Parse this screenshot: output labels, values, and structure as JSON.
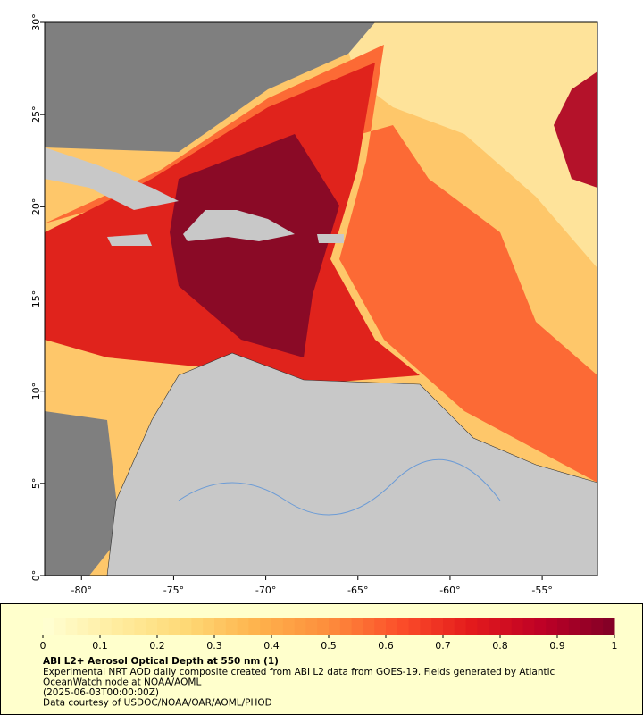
{
  "map": {
    "lon_range": [
      -82,
      -52
    ],
    "lat_range": [
      0,
      30
    ],
    "lat_ticks": [
      {
        "value": 0,
        "label": "0°"
      },
      {
        "value": 5,
        "label": "5°"
      },
      {
        "value": 10,
        "label": "10°"
      },
      {
        "value": 15,
        "label": "15°"
      },
      {
        "value": 20,
        "label": "20°"
      },
      {
        "value": 25,
        "label": "25°"
      },
      {
        "value": 30,
        "label": "30°"
      }
    ],
    "lon_ticks": [
      {
        "value": -80,
        "label": "-80°"
      },
      {
        "value": -75,
        "label": "-75°"
      },
      {
        "value": -70,
        "label": "-70°"
      },
      {
        "value": -65,
        "label": "-65°"
      },
      {
        "value": -60,
        "label": "-60°"
      },
      {
        "value": -55,
        "label": "-55°"
      }
    ]
  },
  "colorbar": {
    "lim": [
      0,
      1
    ],
    "ticks": [
      0,
      0.1,
      0.2,
      0.3,
      0.4,
      0.5,
      0.6,
      0.7,
      0.8,
      0.9,
      1
    ],
    "steps": 50,
    "colormap": [
      "#ffffd4",
      "#ffeda0",
      "#fed976",
      "#feb24c",
      "#fd8d3c",
      "#fc4e2a",
      "#e31a1c",
      "#bd0026",
      "#800026"
    ]
  },
  "caption": {
    "title": "ABI L2+ Aerosol Optical Depth at 550 nm (1)",
    "lines": [
      "Experimental NRT AOD daily composite created from ABI L2 data from GOES-19. Fields generated by Atlantic",
      "OceanWatch node at NOAA/AOML",
      "(2025-06-03T00:00:00Z)",
      "Data courtesy of USDOC/NOAA/OAR/AOML/PHOD"
    ]
  }
}
